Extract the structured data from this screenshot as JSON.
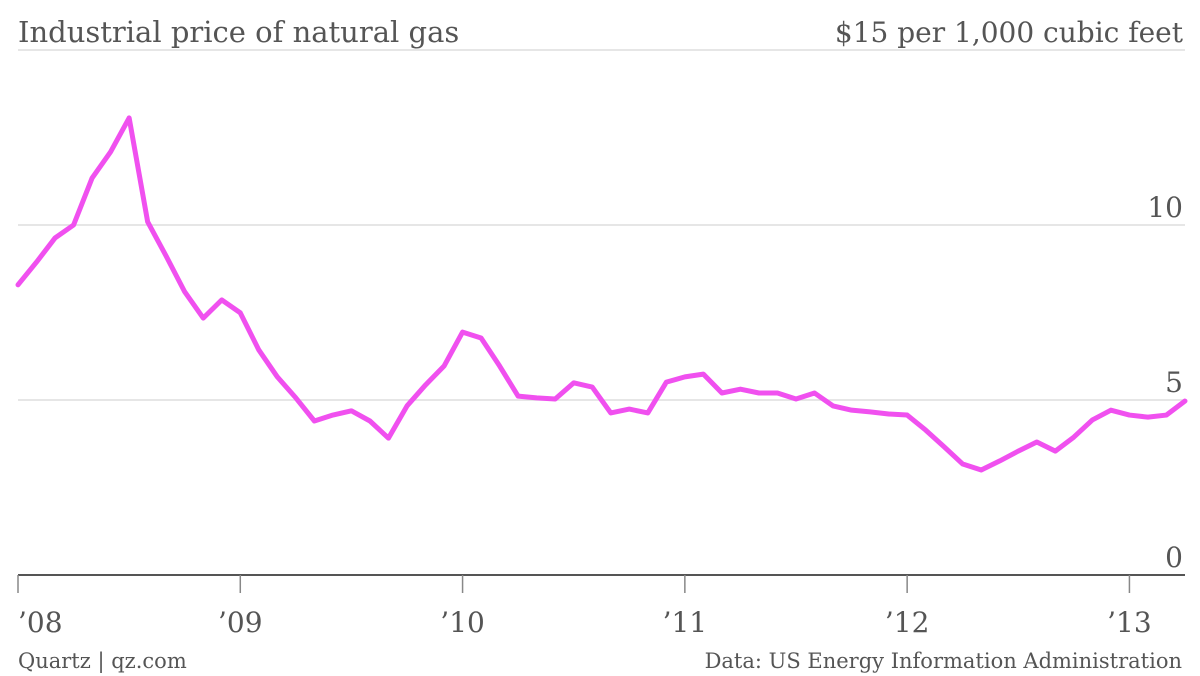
{
  "chart_data": {
    "type": "line",
    "title": "Industrial price of natural gas",
    "source": "Quartz | qz.com",
    "note": "Data: US Energy Information Administration",
    "x": [
      2008,
      2008.0833,
      2008.1667,
      2008.25,
      2008.3333,
      2008.4167,
      2008.5,
      2008.5833,
      2008.6667,
      2008.75,
      2008.8333,
      2008.9167,
      2009,
      2009.0833,
      2009.1667,
      2009.25,
      2009.3333,
      2009.4167,
      2009.5,
      2009.5833,
      2009.6667,
      2009.75,
      2009.8333,
      2009.9167,
      2010,
      2010.0833,
      2010.1667,
      2010.25,
      2010.3333,
      2010.4167,
      2010.5,
      2010.5833,
      2010.6667,
      2010.75,
      2010.8333,
      2010.9167,
      2011,
      2011.0833,
      2011.1667,
      2011.25,
      2011.3333,
      2011.4167,
      2011.5,
      2011.5833,
      2011.6667,
      2011.75,
      2011.8333,
      2011.9167,
      2012,
      2012.0833,
      2012.1667,
      2012.25,
      2012.3333,
      2012.4167,
      2012.5,
      2012.5833,
      2012.6667,
      2012.75,
      2012.8333,
      2012.9167,
      2013,
      2013.0833,
      2013.1667,
      2013.25
    ],
    "series": [
      {
        "color": "#f050ef",
        "values": [
          8.29,
          8.94,
          9.63,
          10.0,
          11.34,
          12.09,
          13.06,
          10.09,
          9.11,
          8.09,
          7.34,
          7.86,
          7.49,
          6.43,
          5.66,
          5.06,
          4.4,
          4.57,
          4.69,
          4.4,
          3.91,
          4.83,
          5.43,
          5.97,
          6.94,
          6.77,
          5.97,
          5.11,
          5.06,
          5.03,
          5.49,
          5.37,
          4.63,
          4.74,
          4.63,
          5.51,
          5.66,
          5.74,
          5.2,
          5.31,
          5.2,
          5.2,
          5.03,
          5.2,
          4.83,
          4.71,
          4.66,
          4.6,
          4.57,
          4.14,
          3.66,
          3.17,
          3.0,
          3.26,
          3.54,
          3.8,
          3.54,
          3.94,
          4.43,
          4.71,
          4.57,
          4.51,
          4.57,
          4.97
        ]
      }
    ],
    "xlim": [
      2008,
      2013.25
    ],
    "xticks": [
      {
        "value": 2008,
        "label": "’08"
      },
      {
        "value": 2009,
        "label": "’09"
      },
      {
        "value": 2010,
        "label": "’10"
      },
      {
        "value": 2011,
        "label": "’11"
      },
      {
        "value": 2012,
        "label": "’12"
      },
      {
        "value": 2013,
        "label": "’13"
      }
    ],
    "ylim": [
      0,
      15
    ],
    "yticks": [
      0,
      5,
      10,
      {
        "value": 15,
        "label": "$15 per 1,000 cubic feet"
      }
    ],
    "grid": true
  }
}
